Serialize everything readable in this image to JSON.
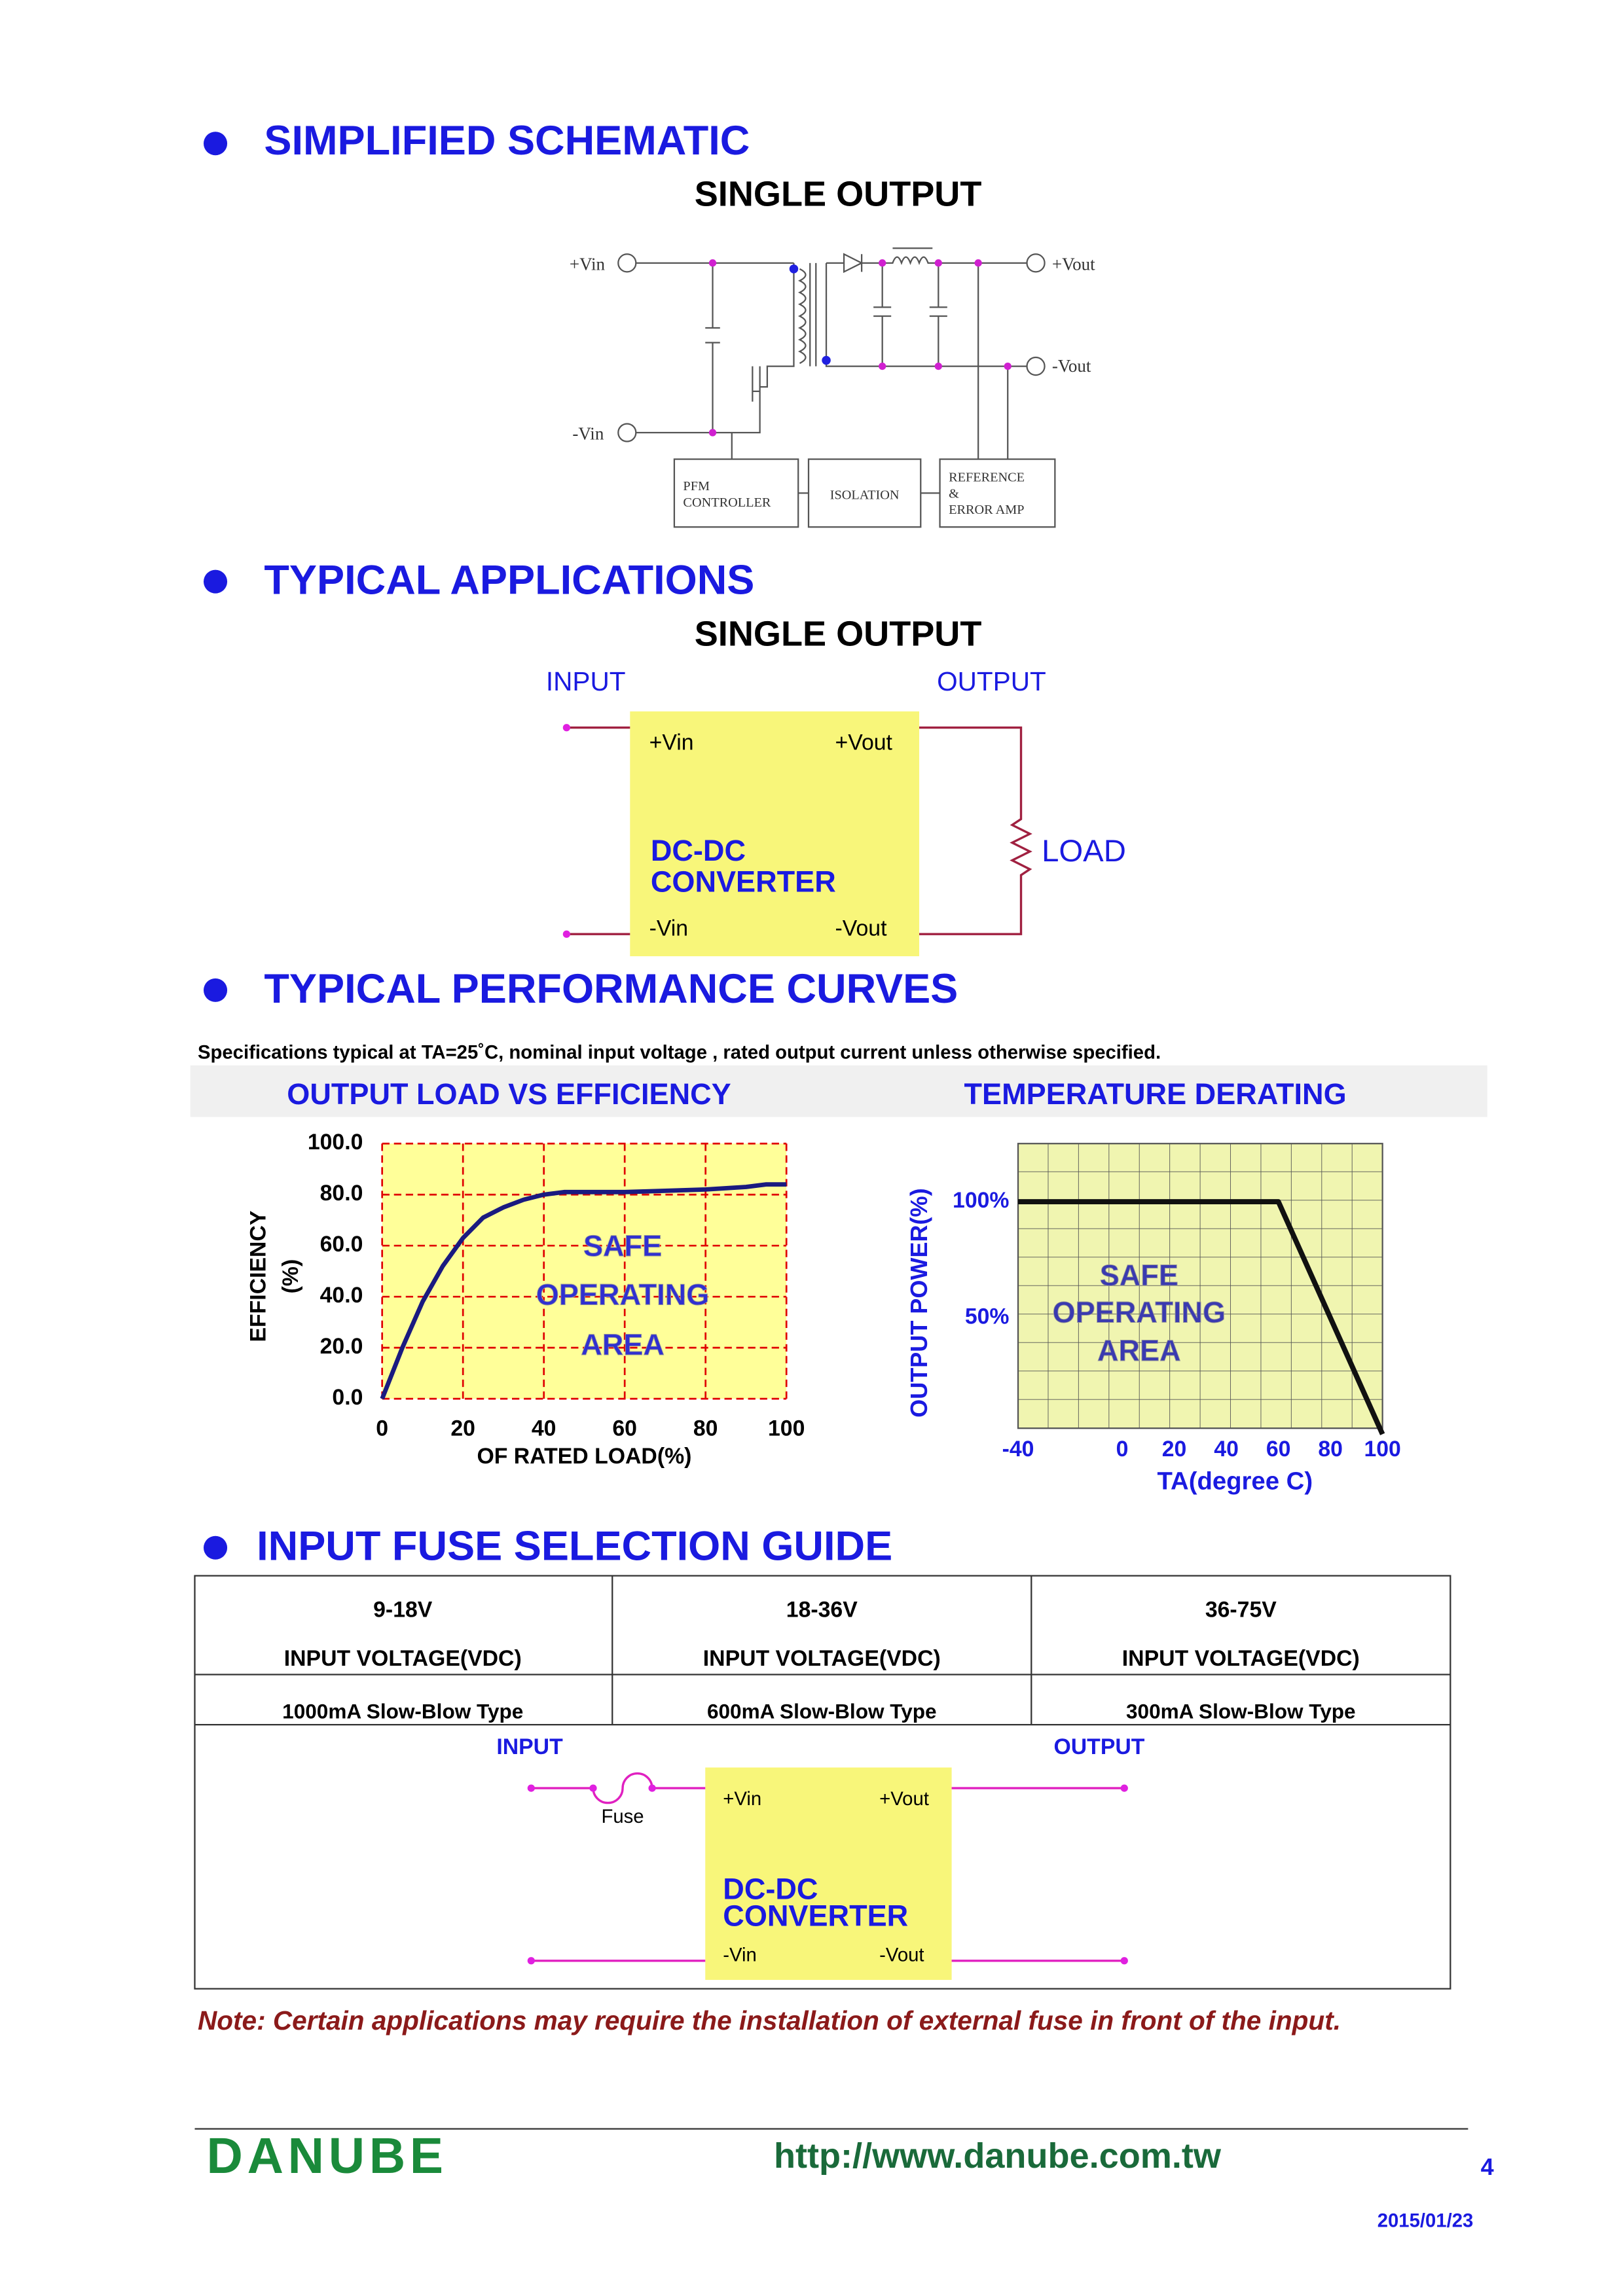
{
  "schematic": {
    "title": "SIMPLIFIED SCHEMATIC",
    "subtitle": "SINGLE OUTPUT",
    "pins": [
      "+Vin",
      "-Vin",
      "+Vout",
      "-Vout"
    ],
    "blocks": [
      [
        "PFM",
        "CONTROLLER"
      ],
      [
        "ISOLATION"
      ],
      [
        "REFERENCE",
        "&",
        "ERROR AMP"
      ]
    ]
  },
  "applications": {
    "title": "TYPICAL APPLICATIONS",
    "subtitle": "SINGLE OUTPUT",
    "input": "INPUT",
    "output": "OUTPUT",
    "pins": [
      "+Vin",
      "+Vout",
      "-Vin",
      "-Vout"
    ],
    "converter": [
      "DC-DC",
      "CONVERTER"
    ],
    "load": "LOAD"
  },
  "performance": {
    "title": "TYPICAL PERFORMANCE CURVES",
    "note": "Specifications typical at TA=25˚C, nominal input voltage , rated output current unless otherwise specified.",
    "efficiency_chart": {
      "type": "line",
      "title": "OUTPUT LOAD VS EFFICIENCY",
      "x_label": "OF RATED LOAD(%)",
      "y_label": [
        "EFFICIENCY",
        "(%)"
      ],
      "annotation": [
        "SAFE",
        "OPERATING",
        "AREA"
      ],
      "color": "#1a1a80",
      "x": [
        0,
        5,
        10,
        15,
        20,
        25,
        30,
        35,
        40,
        45,
        50,
        60,
        70,
        80,
        90,
        95,
        100
      ],
      "values": [
        0,
        20,
        38,
        52,
        63,
        71,
        75,
        78,
        80,
        81,
        81,
        81,
        81.5,
        82,
        83,
        84,
        84
      ],
      "xlim": [
        0,
        100
      ],
      "ylim": [
        0,
        100
      ],
      "xticks": [
        0,
        20,
        40,
        60,
        80,
        100
      ],
      "yticks": [
        {
          "value": 0,
          "label": "0.0"
        },
        {
          "value": 20,
          "label": "20.0"
        },
        {
          "value": 40,
          "label": "40.0"
        },
        {
          "value": 60,
          "label": "60.0"
        },
        {
          "value": 80,
          "label": "80.0"
        },
        {
          "value": 100,
          "label": "100.0"
        }
      ],
      "grid": true
    },
    "derating_chart": {
      "type": "line",
      "title": "TEMPERATURE DERATING",
      "x_label": "TA(degree C)",
      "y_label": "OUTPUT  POWER(%)",
      "annotation": [
        "SAFE",
        "OPERATING",
        "AREA"
      ],
      "color": "#111111",
      "x": [
        -40,
        60,
        100
      ],
      "values": [
        100,
        100,
        0
      ],
      "xlim": [
        -40,
        100
      ],
      "ylim": [
        0,
        125
      ],
      "xticks": [
        -40,
        0,
        20,
        40,
        60,
        80,
        100
      ],
      "yticks": [
        {
          "value": 50,
          "label": "50%"
        },
        {
          "value": 100,
          "label": "100%"
        }
      ]
    }
  },
  "fuse_guide": {
    "title": "INPUT FUSE SELECTION GUIDE",
    "header": [
      [
        "9-18V",
        "INPUT VOLTAGE(VDC)"
      ],
      [
        "18-36V",
        "INPUT VOLTAGE(VDC)"
      ],
      [
        "36-75V",
        "INPUT VOLTAGE(VDC)"
      ]
    ],
    "row": [
      "1000mA Slow-Blow Type",
      "600mA Slow-Blow Type",
      "300mA Slow-Blow Type"
    ],
    "diagram": {
      "input": "INPUT",
      "output": "OUTPUT",
      "fuse": "Fuse",
      "pins": [
        "+Vin",
        "+Vout",
        "-Vin",
        "-Vout"
      ],
      "converter": [
        "DC-DC",
        "CONVERTER"
      ]
    },
    "note": "Note: Certain applications may require the installation of external fuse in front of the input."
  },
  "footer": {
    "brand": "DANUBE",
    "url": "http://www.danube.com.tw",
    "page": "4",
    "date": "2015/01/23"
  }
}
